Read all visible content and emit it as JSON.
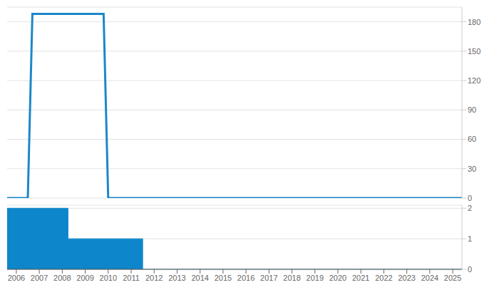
{
  "chart_data": [
    {
      "type": "line",
      "x": [
        2005.6,
        2006.5,
        2006.7,
        2009.8,
        2010.0,
        2025.4
      ],
      "values": [
        0,
        0,
        188,
        188,
        0,
        0
      ],
      "color": "#1b87c9",
      "xlim": [
        2005.6,
        2025.4
      ],
      "ylim": [
        0,
        195
      ],
      "yticks": [
        0,
        30,
        60,
        90,
        120,
        150,
        180
      ],
      "grid": true,
      "tick_labels": "y"
    },
    {
      "type": "area",
      "x": [
        2005.6,
        2008.25,
        2011.5,
        2025.4
      ],
      "values": [
        2,
        1,
        0,
        0
      ],
      "line_style": "step",
      "color": "#0d86cb",
      "xlim": [
        2005.6,
        2025.4
      ],
      "xticks": [
        2006,
        2007,
        2008,
        2009,
        2010,
        2011,
        2012,
        2013,
        2014,
        2015,
        2016,
        2017,
        2018,
        2019,
        2020,
        2021,
        2022,
        2023,
        2024,
        2025
      ],
      "ylim": [
        0,
        2.1
      ],
      "yticks": [
        0,
        1,
        2
      ],
      "grid": true
    }
  ]
}
